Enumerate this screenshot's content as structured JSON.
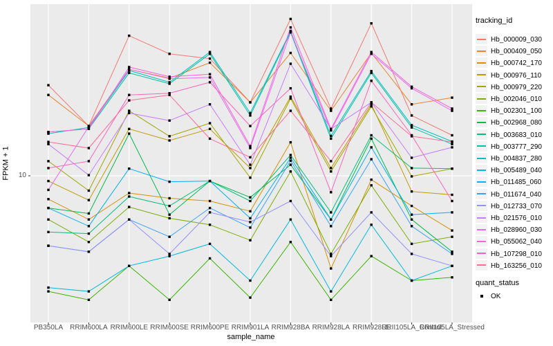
{
  "chart_data": {
    "type": "line",
    "title": "",
    "xlabel": "sample_name",
    "ylabel": "FPKM + 1",
    "y_scale": "log10",
    "y_tick_labels": [
      "10"
    ],
    "ylim_approx": [
      1.0,
      160
    ],
    "grid": "major-white-on-gray",
    "panel_bg": "#EBEBEB",
    "grid_color": "#FFFFFF",
    "marker": "black-square",
    "marker_color": "#000000",
    "legend_color_title": "tracking_id",
    "legend_shape_title": "quant_status",
    "legend_shape_entries": [
      "OK"
    ],
    "categories": [
      "PB350LA",
      "RRIM600LA",
      "RRIM600LE",
      "RRIM600SE",
      "RRIM600PE",
      "RRIM901LA",
      "RRIM928BA",
      "RRIM928LA",
      "RRIM928LE",
      "RRII105LA_Control",
      "RRII105LA_Stressed"
    ],
    "series": [
      {
        "name": "Hb_000009_030",
        "color": "#F8766D",
        "values": [
          42,
          22,
          92,
          69,
          64,
          32,
          120,
          29,
          112,
          26,
          19
        ]
      },
      {
        "name": "Hb_000409_050",
        "color": "#EA8331",
        "values": [
          36,
          22,
          54,
          47,
          60,
          32,
          70,
          28,
          70,
          31,
          34.5
        ]
      },
      {
        "name": "Hb_000742_170",
        "color": "#D89000",
        "values": [
          6.9,
          5.0,
          7.6,
          7.0,
          6.7,
          5.7,
          17,
          2.3,
          9.4,
          6.2,
          4.2
        ]
      },
      {
        "name": "Hb_000976_110",
        "color": "#C09B00",
        "values": [
          9.2,
          6.8,
          21,
          17.5,
          21,
          11.3,
          35,
          11.3,
          31,
          7.8,
          7.4
        ]
      },
      {
        "name": "Hb_000979_220",
        "color": "#A3A500",
        "values": [
          12.6,
          7.9,
          28,
          18.7,
          23,
          9.7,
          34,
          10.7,
          30,
          9.9,
          11.2
        ]
      },
      {
        "name": "Hb_002046_010",
        "color": "#7CAE00",
        "values": [
          5.0,
          3.5,
          6.1,
          5.1,
          4.6,
          3.6,
          10.7,
          2.9,
          8.6,
          3.4,
          3.8
        ]
      },
      {
        "name": "Hb_002301_100",
        "color": "#39B600",
        "values": [
          1.6,
          1.4,
          2.4,
          1.4,
          2.7,
          1.45,
          3.5,
          1.4,
          2.8,
          1.9,
          2.0
        ]
      },
      {
        "name": "Hb_002968_080",
        "color": "#00BB4E",
        "values": [
          6.0,
          5.5,
          19.5,
          5.4,
          9.2,
          7.1,
          11.9,
          5.0,
          18,
          5.0,
          3.0
        ]
      },
      {
        "name": "Hb_003683_010",
        "color": "#00BF7D",
        "values": [
          4.1,
          4.0,
          7.2,
          6.2,
          9.2,
          6.7,
          13.9,
          5.6,
          19,
          11.3,
          11.2
        ]
      },
      {
        "name": "Hb_003777_290",
        "color": "#00C1A3",
        "values": [
          20,
          21,
          51,
          43,
          69,
          26,
          97,
          18,
          51,
          21.5,
          16.5
        ]
      },
      {
        "name": "Hb_004837_280",
        "color": "#00BFC4",
        "values": [
          19.5,
          21.5,
          53,
          44,
          71,
          27,
          99,
          18.8,
          52.5,
          22.3,
          17.2
        ]
      },
      {
        "name": "Hb_005489_040",
        "color": "#00BAE0",
        "values": [
          1.7,
          1.6,
          2.4,
          2.8,
          3.4,
          1.9,
          5.0,
          1.6,
          4.6,
          1.9,
          2.4
        ]
      },
      {
        "name": "Hb_011485_060",
        "color": "#00B0F6",
        "values": [
          6.0,
          4.5,
          11.2,
          9.1,
          9.2,
          5.1,
          13.3,
          5.0,
          15.7,
          5.4,
          5.6
        ]
      },
      {
        "name": "Hb_011674_040",
        "color": "#35A2FF",
        "values": [
          3.3,
          3.0,
          5.0,
          3.8,
          6.0,
          4.4,
          12.7,
          4.5,
          13,
          4.5,
          2.9
        ]
      },
      {
        "name": "Hb_012733_070",
        "color": "#9590FF",
        "values": [
          3.3,
          3.0,
          5.0,
          2.9,
          5.6,
          4.8,
          6.7,
          2.8,
          5.6,
          2.9,
          2.4
        ]
      },
      {
        "name": "Hb_021576_010",
        "color": "#C77CFF",
        "values": [
          16.5,
          10.1,
          27,
          24,
          31,
          11.9,
          59,
          21,
          32,
          13.3,
          15.7
        ]
      },
      {
        "name": "Hb_028960_030",
        "color": "#E76BF3",
        "values": [
          8.0,
          21.8,
          54,
          46.5,
          47.5,
          15.5,
          97,
          20.5,
          69,
          40,
          28
        ]
      },
      {
        "name": "Hb_055062_040",
        "color": "#FA62DB",
        "values": [
          20,
          21,
          56,
          48,
          50,
          16,
          105,
          21,
          71,
          41,
          29
        ]
      },
      {
        "name": "Hb_107298_010",
        "color": "#FF62BC",
        "values": [
          11.3,
          12.6,
          36,
          37,
          44,
          22,
          40,
          7.7,
          45,
          19,
          6.7
        ]
      },
      {
        "name": "Hb_163256_010",
        "color": "#FF6A98",
        "values": [
          17.1,
          15.5,
          33,
          36,
          18,
          13.4,
          28,
          12.6,
          32,
          18.7,
          17.1
        ]
      }
    ]
  }
}
